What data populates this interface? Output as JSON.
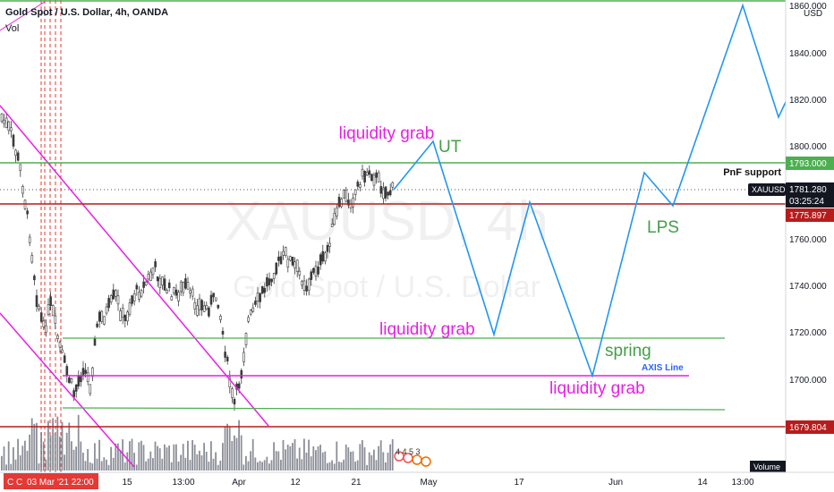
{
  "header": {
    "symbol_line": "Gold Spot / U.S. Dollar, 4h, OANDA",
    "vol_label": "Vol"
  },
  "watermark": {
    "ticker": "XAUUSD, 4h",
    "name": "Gold Spot / U.S. Dollar"
  },
  "price_scale": {
    "currency": "USD",
    "ticks": [
      "1860.000",
      "1840.000",
      "1820.000",
      "1800.000",
      "1780.000",
      "1760.000",
      "1740.000",
      "1720.000",
      "1700.000",
      "1680.000"
    ],
    "top_tick": "1860.000",
    "badges": {
      "level_high": "1793.000",
      "symbol": "XAUUSD",
      "last_price": "1781.280",
      "countdown": "03:25:24",
      "level_mid": "1775.897",
      "level_low": "1679.804"
    },
    "volume_label": "Volume"
  },
  "time_axis": {
    "ticks": [
      "15",
      "13:00",
      "Apr",
      "12",
      "21",
      "May",
      "17",
      "Jun",
      "14",
      "13:00"
    ],
    "cursor_label": "03 Mar '21  22:00",
    "cursor_prefix": "C  C"
  },
  "annotations": {
    "liquidity_grab_top": "liquidity grab",
    "ut": "UT",
    "pnf_support": "PnF support",
    "lps": "LPS",
    "liquidity_grab_mid": "liquidity grab",
    "spring": "spring",
    "axis_line": "AXIS Line",
    "liquidity_grab_low": "liquidity grab",
    "event_counts": "4  4 5 3"
  },
  "colors": {
    "green_line": "#4caf50",
    "magenta": "#e91ee6",
    "red_line": "#b71c1c",
    "blue_path": "#2196f3",
    "candles": "#3a3a3a",
    "axis_line_text": "#2962ff"
  },
  "chart_data": {
    "type": "candlestick",
    "title": "Gold Spot / U.S. Dollar, 4h, OANDA",
    "ylim": [
      1668,
      1863
    ],
    "horizontal_levels": [
      1862,
      1793,
      1775.897,
      1679.804,
      1717,
      1701,
      1685
    ],
    "projection": {
      "labels": [
        "liquidity grab",
        "UT",
        "liquidity grab",
        "liquidity grab",
        "LPS"
      ],
      "y_values": [
        1782,
        1801,
        1720,
        1776,
        1701,
        1790,
        1777,
        1860,
        1813,
        1819
      ]
    },
    "last_price": 1781.28
  }
}
